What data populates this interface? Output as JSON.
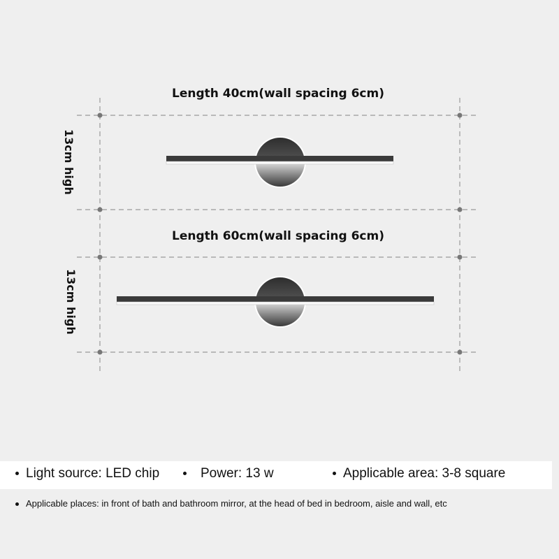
{
  "diagram": {
    "lamp_40": {
      "title": "Length 40cm(wall spacing 6cm)",
      "height_label": "13cm high"
    },
    "lamp_60": {
      "title": "Length 60cm(wall spacing 6cm)",
      "height_label": "13cm high"
    },
    "colors": {
      "background": "#efefef",
      "lamp_body": "#3a3a3a",
      "guide_line": "#999999"
    }
  },
  "specs": {
    "light_source": "Light source: LED chip",
    "power": "Power: 13 w",
    "area": "Applicable area: 3-8 square",
    "places": "Applicable places: in front of bath and bathroom mirror, at the head of bed in bedroom, aisle and wall, etc"
  }
}
